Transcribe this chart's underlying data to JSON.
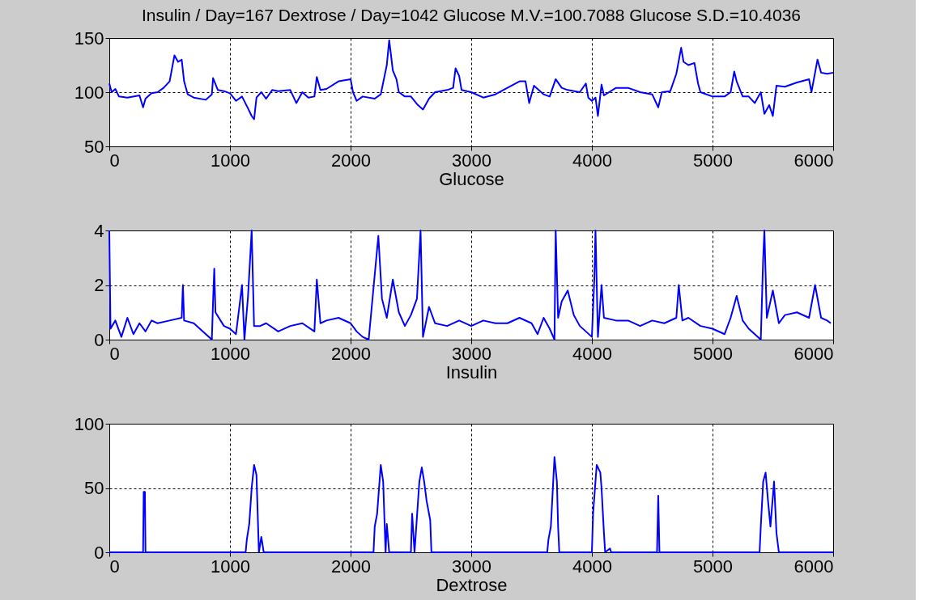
{
  "chart_data": [
    {
      "type": "line",
      "title": "Insulin / Day=167    Dextrose / Day=1042    Glucose M.V.=100.7088    Glucose S.D.=10.4036",
      "xlabel": "Glucose",
      "xlim": [
        0,
        6000
      ],
      "ylim": [
        50,
        150
      ],
      "xticks": [
        0,
        1000,
        2000,
        3000,
        4000,
        5000,
        6000
      ],
      "yticks": [
        50,
        100,
        150
      ],
      "grid": true,
      "x": [
        0,
        20,
        50,
        80,
        150,
        250,
        280,
        300,
        350,
        400,
        450,
        500,
        520,
        540,
        570,
        600,
        620,
        650,
        700,
        800,
        850,
        860,
        900,
        950,
        1000,
        1050,
        1100,
        1150,
        1180,
        1200,
        1220,
        1260,
        1300,
        1350,
        1400,
        1500,
        1550,
        1600,
        1650,
        1700,
        1720,
        1750,
        1800,
        1900,
        2000,
        2020,
        2050,
        2100,
        2200,
        2250,
        2300,
        2320,
        2350,
        2380,
        2400,
        2450,
        2500,
        2550,
        2600,
        2650,
        2700,
        2800,
        2850,
        2870,
        2900,
        2920,
        3000,
        3100,
        3200,
        3300,
        3400,
        3450,
        3480,
        3520,
        3600,
        3650,
        3700,
        3750,
        3800,
        3900,
        3950,
        3970,
        4000,
        4030,
        4050,
        4080,
        4100,
        4200,
        4300,
        4400,
        4500,
        4550,
        4580,
        4650,
        4700,
        4740,
        4760,
        4800,
        4850,
        4880,
        4900,
        5000,
        5100,
        5150,
        5180,
        5200,
        5250,
        5300,
        5350,
        5400,
        5430,
        5470,
        5500,
        5530,
        5600,
        5700,
        5800,
        5820,
        5850,
        5870,
        5900,
        5950,
        6000
      ],
      "series": [
        {
          "color": "#0000ff",
          "values": [
            108,
            100,
            103,
            96,
            95,
            97,
            86,
            94,
            99,
            100,
            104,
            110,
            122,
            134,
            128,
            130,
            110,
            98,
            95,
            93,
            98,
            113,
            102,
            101,
            99,
            92,
            96,
            85,
            78,
            75,
            95,
            100,
            94,
            102,
            101,
            102,
            90,
            100,
            95,
            96,
            114,
            102,
            103,
            110,
            112,
            100,
            92,
            96,
            94,
            98,
            125,
            148,
            120,
            112,
            100,
            96,
            96,
            89,
            84,
            94,
            100,
            102,
            104,
            122,
            115,
            102,
            100,
            95,
            98,
            104,
            110,
            110,
            90,
            106,
            98,
            96,
            112,
            104,
            102,
            100,
            108,
            95,
            92,
            95,
            78,
            107,
            97,
            104,
            104,
            100,
            98,
            86,
            100,
            101,
            117,
            141,
            128,
            125,
            127,
            108,
            100,
            96,
            96,
            100,
            119,
            110,
            96,
            96,
            90,
            100,
            80,
            88,
            78,
            106,
            105,
            109,
            112,
            100,
            118,
            130,
            118,
            117,
            118
          ]
        }
      ]
    },
    {
      "type": "line",
      "xlabel": "Insulin",
      "xlim": [
        0,
        6000
      ],
      "ylim": [
        0,
        4
      ],
      "xticks": [
        0,
        1000,
        2000,
        3000,
        4000,
        5000,
        6000
      ],
      "yticks": [
        0,
        2,
        4
      ],
      "grid": true,
      "x": [
        0,
        10,
        50,
        100,
        150,
        200,
        250,
        300,
        350,
        400,
        500,
        600,
        610,
        620,
        700,
        800,
        850,
        860,
        870,
        880,
        950,
        1000,
        1050,
        1100,
        1120,
        1150,
        1180,
        1200,
        1250,
        1300,
        1400,
        1500,
        1600,
        1700,
        1720,
        1750,
        1800,
        1900,
        2000,
        2050,
        2100,
        2150,
        2230,
        2260,
        2300,
        2350,
        2400,
        2450,
        2500,
        2550,
        2580,
        2600,
        2650,
        2700,
        2800,
        2900,
        3000,
        3100,
        3200,
        3300,
        3400,
        3500,
        3550,
        3600,
        3650,
        3690,
        3700,
        3720,
        3750,
        3800,
        3850,
        3900,
        4000,
        4020,
        4030,
        4050,
        4080,
        4100,
        4200,
        4300,
        4400,
        4500,
        4600,
        4700,
        4720,
        4750,
        4800,
        4900,
        5000,
        5100,
        5150,
        5200,
        5250,
        5300,
        5400,
        5420,
        5430,
        5450,
        5500,
        5550,
        5600,
        5700,
        5800,
        5850,
        5900,
        5950,
        5980
      ],
      "series": [
        {
          "color": "#0000ff",
          "values": [
            4,
            0.4,
            0.7,
            0.1,
            0.8,
            0.2,
            0.6,
            0.3,
            0.7,
            0.6,
            0.7,
            0.8,
            2,
            0.7,
            0.6,
            0.2,
            0,
            1.4,
            2.6,
            1,
            0.5,
            0.4,
            0.2,
            2,
            0,
            1.6,
            4,
            0.5,
            0.5,
            0.6,
            0.3,
            0.5,
            0.6,
            0.3,
            2.2,
            0.6,
            0.7,
            0.8,
            0.6,
            0.3,
            0.1,
            0,
            3.8,
            1.5,
            0.8,
            2.2,
            1,
            0.5,
            0.9,
            1.5,
            4,
            0.1,
            1.2,
            0.6,
            0.5,
            0.7,
            0.5,
            0.7,
            0.6,
            0.6,
            0.8,
            0.6,
            0.2,
            0.8,
            0.4,
            0,
            4,
            0.8,
            1.4,
            1.8,
            0.9,
            0.5,
            0.1,
            2.2,
            4,
            0.1,
            2,
            0.8,
            0.7,
            0.7,
            0.5,
            0.7,
            0.6,
            0.8,
            2,
            0.7,
            0.8,
            0.5,
            0.4,
            0.2,
            0.8,
            1.6,
            0.7,
            0.4,
            0,
            3,
            4,
            0.8,
            1.8,
            0.6,
            0.9,
            1,
            0.8,
            2,
            0.8,
            0.7,
            0.6
          ]
        }
      ]
    },
    {
      "type": "line",
      "xlabel": "Dextrose",
      "xlim": [
        0,
        6000
      ],
      "ylim": [
        0,
        100
      ],
      "xticks": [
        0,
        1000,
        2000,
        3000,
        4000,
        5000,
        6000
      ],
      "yticks": [
        0,
        50,
        100
      ],
      "grid": true,
      "x": [
        0,
        280,
        285,
        295,
        300,
        1130,
        1140,
        1160,
        1180,
        1200,
        1220,
        1240,
        1260,
        1280,
        2190,
        2200,
        2220,
        2250,
        2270,
        2290,
        2300,
        2320,
        2500,
        2510,
        2530,
        2570,
        2590,
        2610,
        2630,
        2660,
        2670,
        3630,
        3640,
        3660,
        3690,
        3710,
        3720,
        3730,
        4000,
        4010,
        4040,
        4070,
        4080,
        4100,
        4110,
        4150,
        4160,
        4540,
        4550,
        4560,
        5390,
        5400,
        5420,
        5440,
        5460,
        5480,
        5510,
        5530,
        5550,
        6000
      ],
      "series": [
        {
          "color": "#0000ff",
          "values": [
            0,
            0,
            47,
            47,
            0,
            0,
            10,
            22,
            50,
            68,
            60,
            0,
            12,
            0,
            0,
            20,
            30,
            68,
            55,
            0,
            22,
            0,
            0,
            30,
            0,
            55,
            66,
            55,
            40,
            25,
            0,
            0,
            10,
            20,
            74,
            55,
            20,
            0,
            0,
            30,
            68,
            62,
            50,
            15,
            0,
            3,
            0,
            0,
            44,
            0,
            0,
            20,
            55,
            62,
            40,
            20,
            55,
            15,
            0,
            0
          ]
        }
      ]
    }
  ]
}
